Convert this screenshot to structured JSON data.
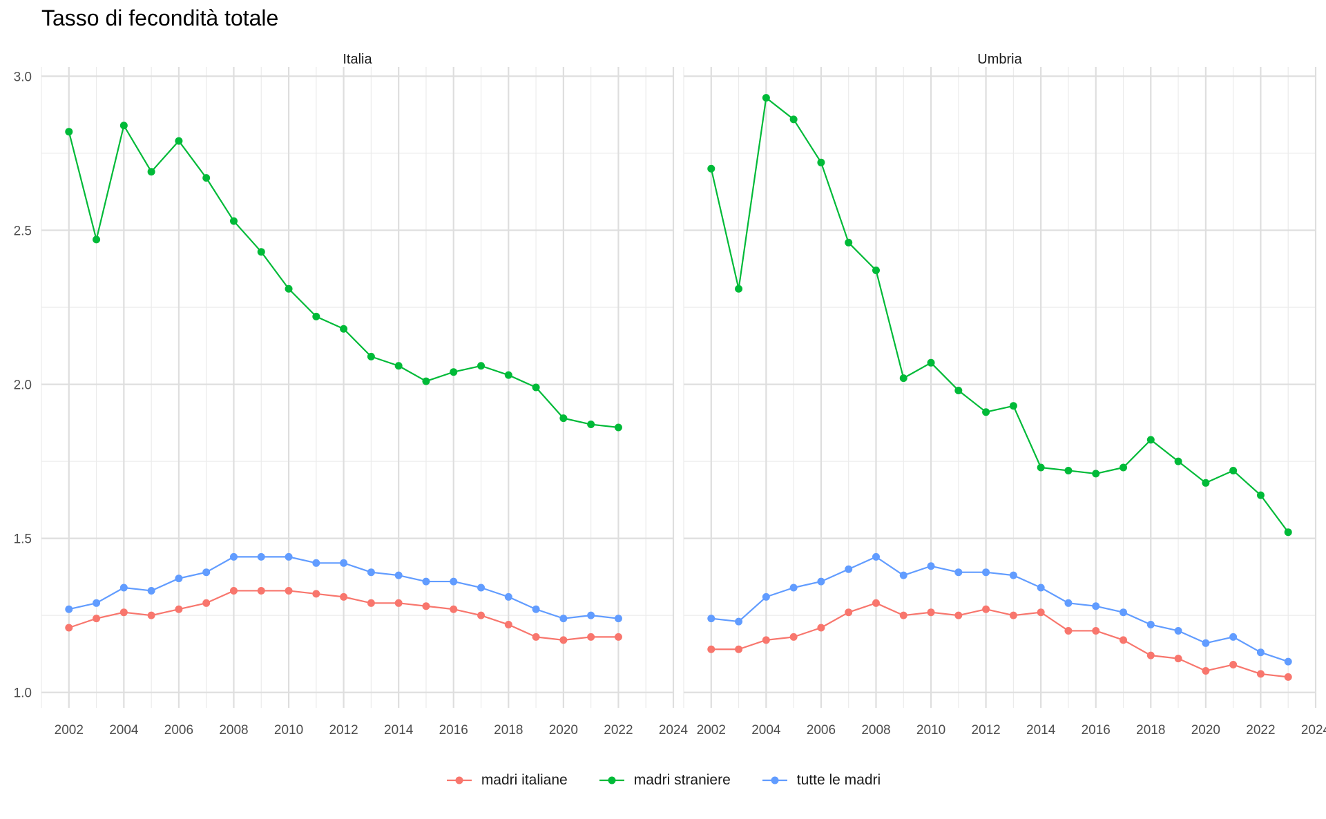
{
  "chart_data": {
    "type": "line",
    "title": "Tasso di fecondità totale",
    "xlabel": "",
    "ylabel": "",
    "ylim": [
      0.95,
      3.03
    ],
    "xlim": [
      2001,
      2024
    ],
    "x_ticks": [
      2002,
      2004,
      2006,
      2008,
      2010,
      2012,
      2014,
      2016,
      2018,
      2020,
      2022,
      2024
    ],
    "y_ticks": [
      1.0,
      1.5,
      2.0,
      2.5,
      3.0
    ],
    "y_tick_labels": [
      "1.0",
      "1.5",
      "2.0",
      "2.5",
      "3.0"
    ],
    "grid": true,
    "legend_position": "bottom",
    "series_colors": {
      "madri italiane": "#F8766D",
      "madri straniere": "#00BA38",
      "tutte le madri": "#619CFF"
    },
    "legend": [
      "madri italiane",
      "madri straniere",
      "tutte le madri"
    ],
    "panels": [
      {
        "strip": "Italia",
        "x": [
          2002,
          2003,
          2004,
          2005,
          2006,
          2007,
          2008,
          2009,
          2010,
          2011,
          2012,
          2013,
          2014,
          2015,
          2016,
          2017,
          2018,
          2019,
          2020,
          2021,
          2022
        ],
        "series": [
          {
            "name": "madri italiane",
            "values": [
              1.21,
              1.24,
              1.26,
              1.25,
              1.27,
              1.29,
              1.33,
              1.33,
              1.33,
              1.32,
              1.31,
              1.29,
              1.29,
              1.28,
              1.27,
              1.25,
              1.22,
              1.18,
              1.17,
              1.18,
              1.18
            ]
          },
          {
            "name": "madri straniere",
            "values": [
              2.82,
              2.47,
              2.84,
              2.69,
              2.79,
              2.67,
              2.53,
              2.43,
              2.31,
              2.22,
              2.18,
              2.09,
              2.06,
              2.01,
              2.04,
              2.06,
              2.03,
              1.99,
              1.89,
              1.87,
              1.86
            ]
          },
          {
            "name": "tutte le madri",
            "values": [
              1.27,
              1.29,
              1.34,
              1.33,
              1.37,
              1.39,
              1.44,
              1.44,
              1.44,
              1.42,
              1.42,
              1.39,
              1.38,
              1.36,
              1.36,
              1.34,
              1.31,
              1.27,
              1.24,
              1.25,
              1.24
            ]
          }
        ]
      },
      {
        "strip": "Umbria",
        "x": [
          2002,
          2003,
          2004,
          2005,
          2006,
          2007,
          2008,
          2009,
          2010,
          2011,
          2012,
          2013,
          2014,
          2015,
          2016,
          2017,
          2018,
          2019,
          2020,
          2021,
          2022,
          2023
        ],
        "series": [
          {
            "name": "madri italiane",
            "values": [
              1.14,
              1.14,
              1.17,
              1.18,
              1.21,
              1.26,
              1.29,
              1.25,
              1.26,
              1.25,
              1.27,
              1.25,
              1.26,
              1.2,
              1.2,
              1.17,
              1.12,
              1.11,
              1.07,
              1.09,
              1.06,
              1.05
            ]
          },
          {
            "name": "madri straniere",
            "values": [
              2.7,
              2.31,
              2.93,
              2.86,
              2.72,
              2.46,
              2.37,
              2.02,
              2.07,
              1.98,
              1.91,
              1.93,
              1.73,
              1.72,
              1.71,
              1.73,
              1.82,
              1.75,
              1.68,
              1.72,
              1.64,
              1.52
            ]
          },
          {
            "name": "tutte le madri",
            "values": [
              1.24,
              1.23,
              1.31,
              1.34,
              1.36,
              1.4,
              1.44,
              1.38,
              1.41,
              1.39,
              1.39,
              1.38,
              1.34,
              1.29,
              1.28,
              1.26,
              1.22,
              1.2,
              1.16,
              1.18,
              1.13,
              1.1
            ]
          }
        ]
      }
    ]
  }
}
